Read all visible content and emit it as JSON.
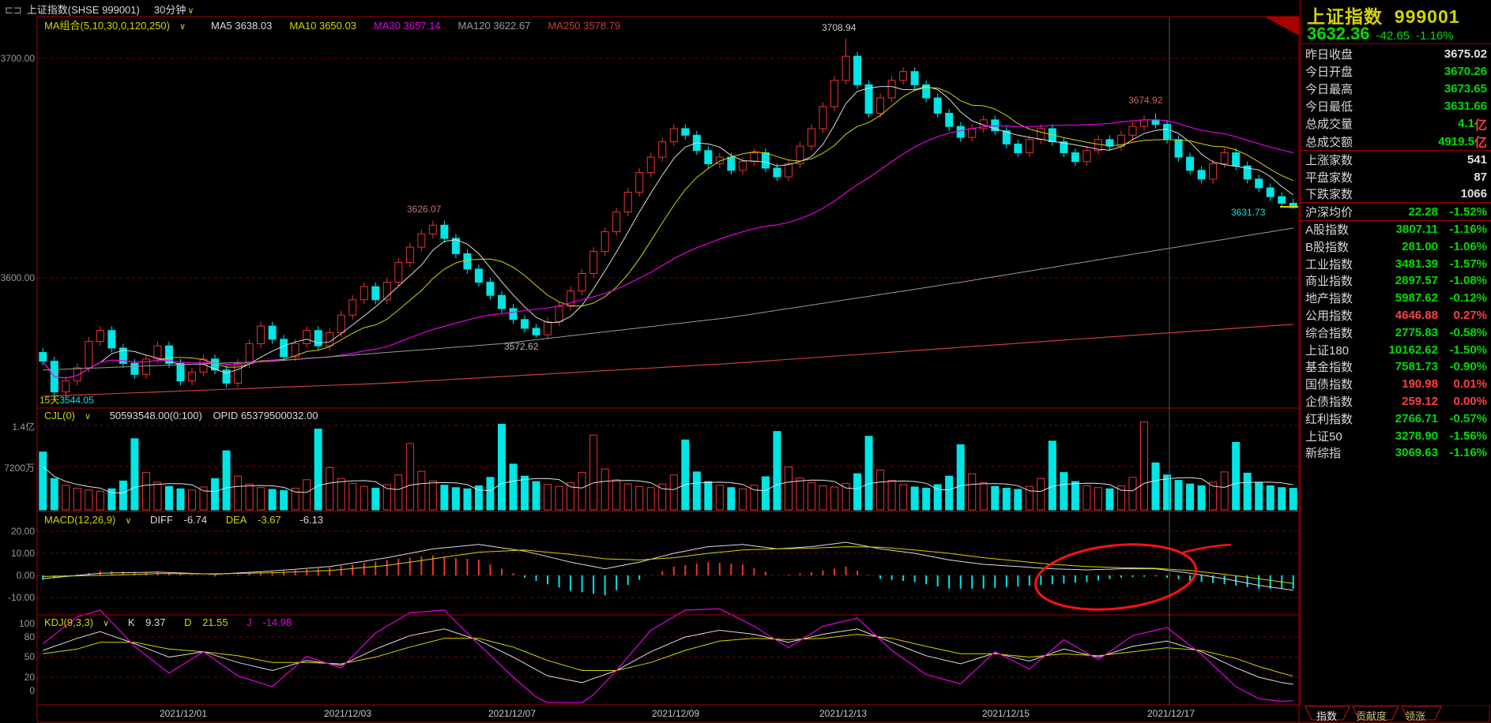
{
  "titlebar": {
    "window_icon": "⊏⊐",
    "title": "上证指数(SHSE 999001)",
    "period": "30分钟",
    "caret": "∨"
  },
  "ma_header": {
    "label": "MA组合(5,10,30,0,120,250)",
    "caret": "∨",
    "items": [
      {
        "name": "MA5",
        "value": "3638.03",
        "color": "#dcdcdc"
      },
      {
        "name": "MA10",
        "value": "3650.03",
        "color": "#d4d400"
      },
      {
        "name": "MA30",
        "value": "3657.14",
        "color": "#e800e8"
      },
      {
        "name": "MA120",
        "value": "3622.67",
        "color": "#9a9a9a"
      },
      {
        "name": "MA250",
        "value": "3578.79",
        "color": "#cc3c3c"
      }
    ]
  },
  "vol_header": {
    "label": "CJL(0)",
    "caret": "∨",
    "value": "50593548.00(0:100)",
    "opid": "OPID 65379500032.00"
  },
  "macd_header": {
    "label": "MACD(12,26,9)",
    "caret": "∨",
    "diff_label": "DIFF",
    "diff": "-6.74",
    "dea_label": "DEA",
    "dea": "-3.67",
    "bar": "-6.13"
  },
  "kdj_header": {
    "label": "KDJ(9,3,3)",
    "caret": "∨",
    "k_label": "K",
    "k": "9.37",
    "d_label": "D",
    "d": "21.55",
    "j_label": "J",
    "j": "-14.98"
  },
  "annotations": {
    "low15_label": "15天",
    "low15_value": "3544.05",
    "peak1": "3626.07",
    "trough1": "3572.62",
    "peak2": "3708.94",
    "peak3": "3674.92",
    "last_price": "3631.73"
  },
  "sidebar": {
    "title": "上证指数",
    "code": "999001",
    "price": "3632.36",
    "change": "-42.65",
    "change_pct": "-1.16%",
    "quote_rows": [
      {
        "label": "昨日收盘",
        "value": "3675.02",
        "unit": "",
        "color": "white"
      },
      {
        "label": "今日开盘",
        "value": "3670.26",
        "unit": "",
        "color": "green"
      },
      {
        "label": "今日最高",
        "value": "3673.65",
        "unit": "",
        "color": "green"
      },
      {
        "label": "今日最低",
        "value": "3631.66",
        "unit": "",
        "color": "green"
      },
      {
        "label": "总成交量",
        "value": "4.1",
        "unit": "亿",
        "color": "green"
      },
      {
        "label": "总成交额",
        "value": "4919.5",
        "unit": "亿",
        "color": "green"
      }
    ],
    "breadth_rows": [
      {
        "label": "上涨家数",
        "value": "541"
      },
      {
        "label": "平盘家数",
        "value": "87"
      },
      {
        "label": "下跌家数",
        "value": "1066"
      }
    ],
    "avg_row": {
      "label": "沪深均价",
      "value": "22.28",
      "pct": "-1.52%",
      "color": "green"
    },
    "index_rows": [
      {
        "label": "A股指数",
        "value": "3807.11",
        "pct": "-1.16%",
        "color": "green"
      },
      {
        "label": "B股指数",
        "value": "281.00",
        "pct": "-1.06%",
        "color": "green"
      },
      {
        "label": "工业指数",
        "value": "3481.39",
        "pct": "-1.57%",
        "color": "green"
      },
      {
        "label": "商业指数",
        "value": "2897.57",
        "pct": "-1.08%",
        "color": "green"
      },
      {
        "label": "地产指数",
        "value": "5987.62",
        "pct": "-0.12%",
        "color": "green"
      },
      {
        "label": "公用指数",
        "value": "4646.88",
        "pct": "0.27%",
        "color": "red"
      },
      {
        "label": "综合指数",
        "value": "2775.83",
        "pct": "-0.58%",
        "color": "green"
      },
      {
        "label": "上证180",
        "value": "10162.62",
        "pct": "-1.50%",
        "color": "green"
      },
      {
        "label": "基金指数",
        "value": "7581.73",
        "pct": "-0.90%",
        "color": "green"
      },
      {
        "label": "国债指数",
        "value": "190.98",
        "pct": "0.01%",
        "color": "red"
      },
      {
        "label": "企债指数",
        "value": "259.12",
        "pct": "0.00%",
        "color": "red"
      },
      {
        "label": "红利指数",
        "value": "2766.71",
        "pct": "-0.57%",
        "color": "green"
      },
      {
        "label": "上证50",
        "value": "3278.90",
        "pct": "-1.56%",
        "color": "green"
      },
      {
        "label": "新综指",
        "value": "3069.63",
        "pct": "-1.16%",
        "color": "green"
      }
    ],
    "tabs": [
      {
        "label": "指数",
        "active": true
      },
      {
        "label": "贡献度",
        "active": false
      },
      {
        "label": "领涨",
        "active": false
      }
    ]
  },
  "chart_data": {
    "type": "candlestick-multi-pane",
    "dates": [
      "2021/12/01",
      "2021/12/03",
      "2021/12/07",
      "2021/12/09",
      "2021/12/13",
      "2021/12/15",
      "2021/12/17"
    ],
    "main": {
      "yticks": [
        "3700.00",
        "3600.00"
      ],
      "open_first": 3566,
      "closes": [
        3562,
        3548,
        3553,
        3559,
        3571,
        3576,
        3568,
        3561,
        3556,
        3563,
        3569,
        3561,
        3553,
        3557,
        3563,
        3558,
        3552,
        3561,
        3570,
        3578,
        3572,
        3564,
        3570,
        3576,
        3569,
        3575,
        3583,
        3590,
        3596,
        3590,
        3598,
        3607,
        3614,
        3620,
        3624,
        3618,
        3611,
        3604,
        3598,
        3592,
        3586,
        3581,
        3577,
        3574,
        3580,
        3587,
        3594,
        3602,
        3612,
        3621,
        3630,
        3639,
        3648,
        3655,
        3662,
        3668,
        3665,
        3658,
        3652,
        3655,
        3649,
        3653,
        3657,
        3650,
        3646,
        3652,
        3660,
        3668,
        3678,
        3690,
        3701,
        3688,
        3675,
        3682,
        3690,
        3694,
        3688,
        3682,
        3675,
        3669,
        3664,
        3668,
        3672,
        3667,
        3661,
        3657,
        3663,
        3668,
        3662,
        3657,
        3653,
        3658,
        3663,
        3660,
        3665,
        3669,
        3672,
        3670,
        3663,
        3655,
        3649,
        3645,
        3652,
        3657,
        3651,
        3645,
        3641,
        3637,
        3634,
        3632
      ],
      "wick_overrides": {
        "1": {
          "low": 3544.05
        },
        "34": {
          "high": 3626.07
        },
        "43": {
          "low": 3572.62
        },
        "70": {
          "high": 3708.94
        },
        "97": {
          "high": 3674.92
        },
        "109": {
          "low": 3631.66
        }
      },
      "ma120": [
        [
          0,
          3558
        ],
        [
          20,
          3562
        ],
        [
          40,
          3570
        ],
        [
          60,
          3582
        ],
        [
          80,
          3598
        ],
        [
          100,
          3615
        ],
        [
          109,
          3622.7
        ]
      ],
      "ma250": [
        [
          0,
          3546
        ],
        [
          30,
          3552
        ],
        [
          60,
          3561
        ],
        [
          90,
          3572
        ],
        [
          109,
          3578.8
        ]
      ]
    },
    "volume": {
      "yticks": [
        "1.4亿",
        "7200万"
      ],
      "values": [
        9600,
        5200,
        4100,
        3600,
        3300,
        3100,
        3500,
        4800,
        11800,
        6200,
        4600,
        3900,
        3500,
        3300,
        3800,
        5200,
        9800,
        5600,
        4300,
        3700,
        3400,
        3200,
        3600,
        5000,
        13400,
        7000,
        5200,
        4400,
        3900,
        3600,
        4200,
        5800,
        11000,
        6400,
        4800,
        4100,
        3700,
        3500,
        4000,
        5400,
        14200,
        7600,
        5600,
        4700,
        4200,
        3900,
        4500,
        6200,
        12400,
        6800,
        5000,
        4300,
        3900,
        3700,
        4300,
        5800,
        11600,
        6300,
        4700,
        4100,
        3700,
        3500,
        4100,
        5500,
        13000,
        7100,
        5300,
        4500,
        4000,
        3800,
        4400,
        6000,
        12200,
        6600,
        4900,
        4200,
        3800,
        3600,
        4200,
        5600,
        10800,
        6000,
        4500,
        3900,
        3600,
        3400,
        3900,
        5200,
        11400,
        6200,
        4700,
        4000,
        3700,
        3500,
        4000,
        5400,
        14600,
        7800,
        5800,
        4900,
        4300,
        4000,
        4600,
        6300,
        11200,
        6100,
        4600,
        4000,
        3700,
        3600
      ]
    },
    "macd": {
      "yticks": [
        "20.00",
        "10.00",
        "0.00",
        "-10.00"
      ],
      "diff": [
        [
          0,
          -1.5
        ],
        [
          5,
          1
        ],
        [
          10,
          1.5
        ],
        [
          15,
          0.5
        ],
        [
          20,
          2
        ],
        [
          25,
          4
        ],
        [
          30,
          8
        ],
        [
          34,
          12
        ],
        [
          38,
          14
        ],
        [
          42,
          11
        ],
        [
          46,
          6
        ],
        [
          49,
          3
        ],
        [
          52,
          6
        ],
        [
          55,
          10
        ],
        [
          58,
          13
        ],
        [
          61,
          14
        ],
        [
          64,
          12
        ],
        [
          67,
          13
        ],
        [
          70,
          15
        ],
        [
          73,
          12
        ],
        [
          76,
          10
        ],
        [
          79,
          7
        ],
        [
          82,
          5
        ],
        [
          85,
          4
        ],
        [
          88,
          3
        ],
        [
          91,
          2.5
        ],
        [
          94,
          3
        ],
        [
          97,
          3
        ],
        [
          100,
          1
        ],
        [
          103,
          -1.5
        ],
        [
          106,
          -4.5
        ],
        [
          109,
          -6.74
        ]
      ],
      "dea": [
        [
          0,
          -0.5
        ],
        [
          5,
          0
        ],
        [
          10,
          0.8
        ],
        [
          15,
          0.7
        ],
        [
          20,
          1.2
        ],
        [
          25,
          2.2
        ],
        [
          30,
          4.5
        ],
        [
          34,
          7.5
        ],
        [
          38,
          10.5
        ],
        [
          42,
          11.5
        ],
        [
          46,
          9.5
        ],
        [
          49,
          7.5
        ],
        [
          52,
          7
        ],
        [
          55,
          8
        ],
        [
          58,
          10
        ],
        [
          61,
          11.5
        ],
        [
          64,
          12
        ],
        [
          67,
          12.3
        ],
        [
          70,
          13
        ],
        [
          73,
          12.8
        ],
        [
          76,
          11.5
        ],
        [
          79,
          10
        ],
        [
          82,
          8
        ],
        [
          85,
          6.5
        ],
        [
          88,
          5
        ],
        [
          91,
          4
        ],
        [
          94,
          3.5
        ],
        [
          97,
          3.2
        ],
        [
          100,
          2.2
        ],
        [
          103,
          0.5
        ],
        [
          106,
          -1.5
        ],
        [
          109,
          -3.67
        ]
      ]
    },
    "kdj": {
      "yticks": [
        "100",
        "80",
        "50",
        "20",
        "0"
      ],
      "k": [
        [
          0,
          60
        ],
        [
          3,
          78
        ],
        [
          5,
          88
        ],
        [
          8,
          70
        ],
        [
          11,
          50
        ],
        [
          14,
          58
        ],
        [
          17,
          42
        ],
        [
          20,
          30
        ],
        [
          23,
          45
        ],
        [
          26,
          38
        ],
        [
          29,
          62
        ],
        [
          32,
          82
        ],
        [
          35,
          92
        ],
        [
          38,
          75
        ],
        [
          41,
          50
        ],
        [
          44,
          22
        ],
        [
          47,
          12
        ],
        [
          50,
          30
        ],
        [
          53,
          58
        ],
        [
          56,
          80
        ],
        [
          59,
          90
        ],
        [
          62,
          84
        ],
        [
          65,
          72
        ],
        [
          68,
          84
        ],
        [
          71,
          92
        ],
        [
          74,
          72
        ],
        [
          77,
          52
        ],
        [
          80,
          40
        ],
        [
          83,
          56
        ],
        [
          86,
          44
        ],
        [
          89,
          62
        ],
        [
          92,
          50
        ],
        [
          95,
          66
        ],
        [
          98,
          74
        ],
        [
          101,
          58
        ],
        [
          104,
          34
        ],
        [
          106,
          20
        ],
        [
          108,
          12
        ],
        [
          109,
          9.37
        ]
      ],
      "d": [
        [
          0,
          55
        ],
        [
          3,
          62
        ],
        [
          5,
          72
        ],
        [
          8,
          72
        ],
        [
          11,
          62
        ],
        [
          14,
          58
        ],
        [
          17,
          52
        ],
        [
          20,
          42
        ],
        [
          23,
          42
        ],
        [
          26,
          40
        ],
        [
          29,
          50
        ],
        [
          32,
          65
        ],
        [
          35,
          78
        ],
        [
          38,
          78
        ],
        [
          41,
          65
        ],
        [
          44,
          45
        ],
        [
          47,
          30
        ],
        [
          50,
          30
        ],
        [
          53,
          42
        ],
        [
          56,
          60
        ],
        [
          59,
          74
        ],
        [
          62,
          78
        ],
        [
          65,
          76
        ],
        [
          68,
          78
        ],
        [
          71,
          84
        ],
        [
          74,
          78
        ],
        [
          77,
          66
        ],
        [
          80,
          55
        ],
        [
          83,
          55
        ],
        [
          86,
          50
        ],
        [
          89,
          55
        ],
        [
          92,
          52
        ],
        [
          95,
          58
        ],
        [
          98,
          64
        ],
        [
          101,
          60
        ],
        [
          104,
          48
        ],
        [
          106,
          36
        ],
        [
          108,
          26
        ],
        [
          109,
          21.55
        ]
      ]
    }
  },
  "colors": {
    "up": "#ee3333",
    "down": "#00e5e5",
    "grid": "#780000",
    "border": "#a80000",
    "green": "#00dd00",
    "red": "#ff4040",
    "yellow": "#d4d400",
    "magenta": "#e800e8"
  }
}
